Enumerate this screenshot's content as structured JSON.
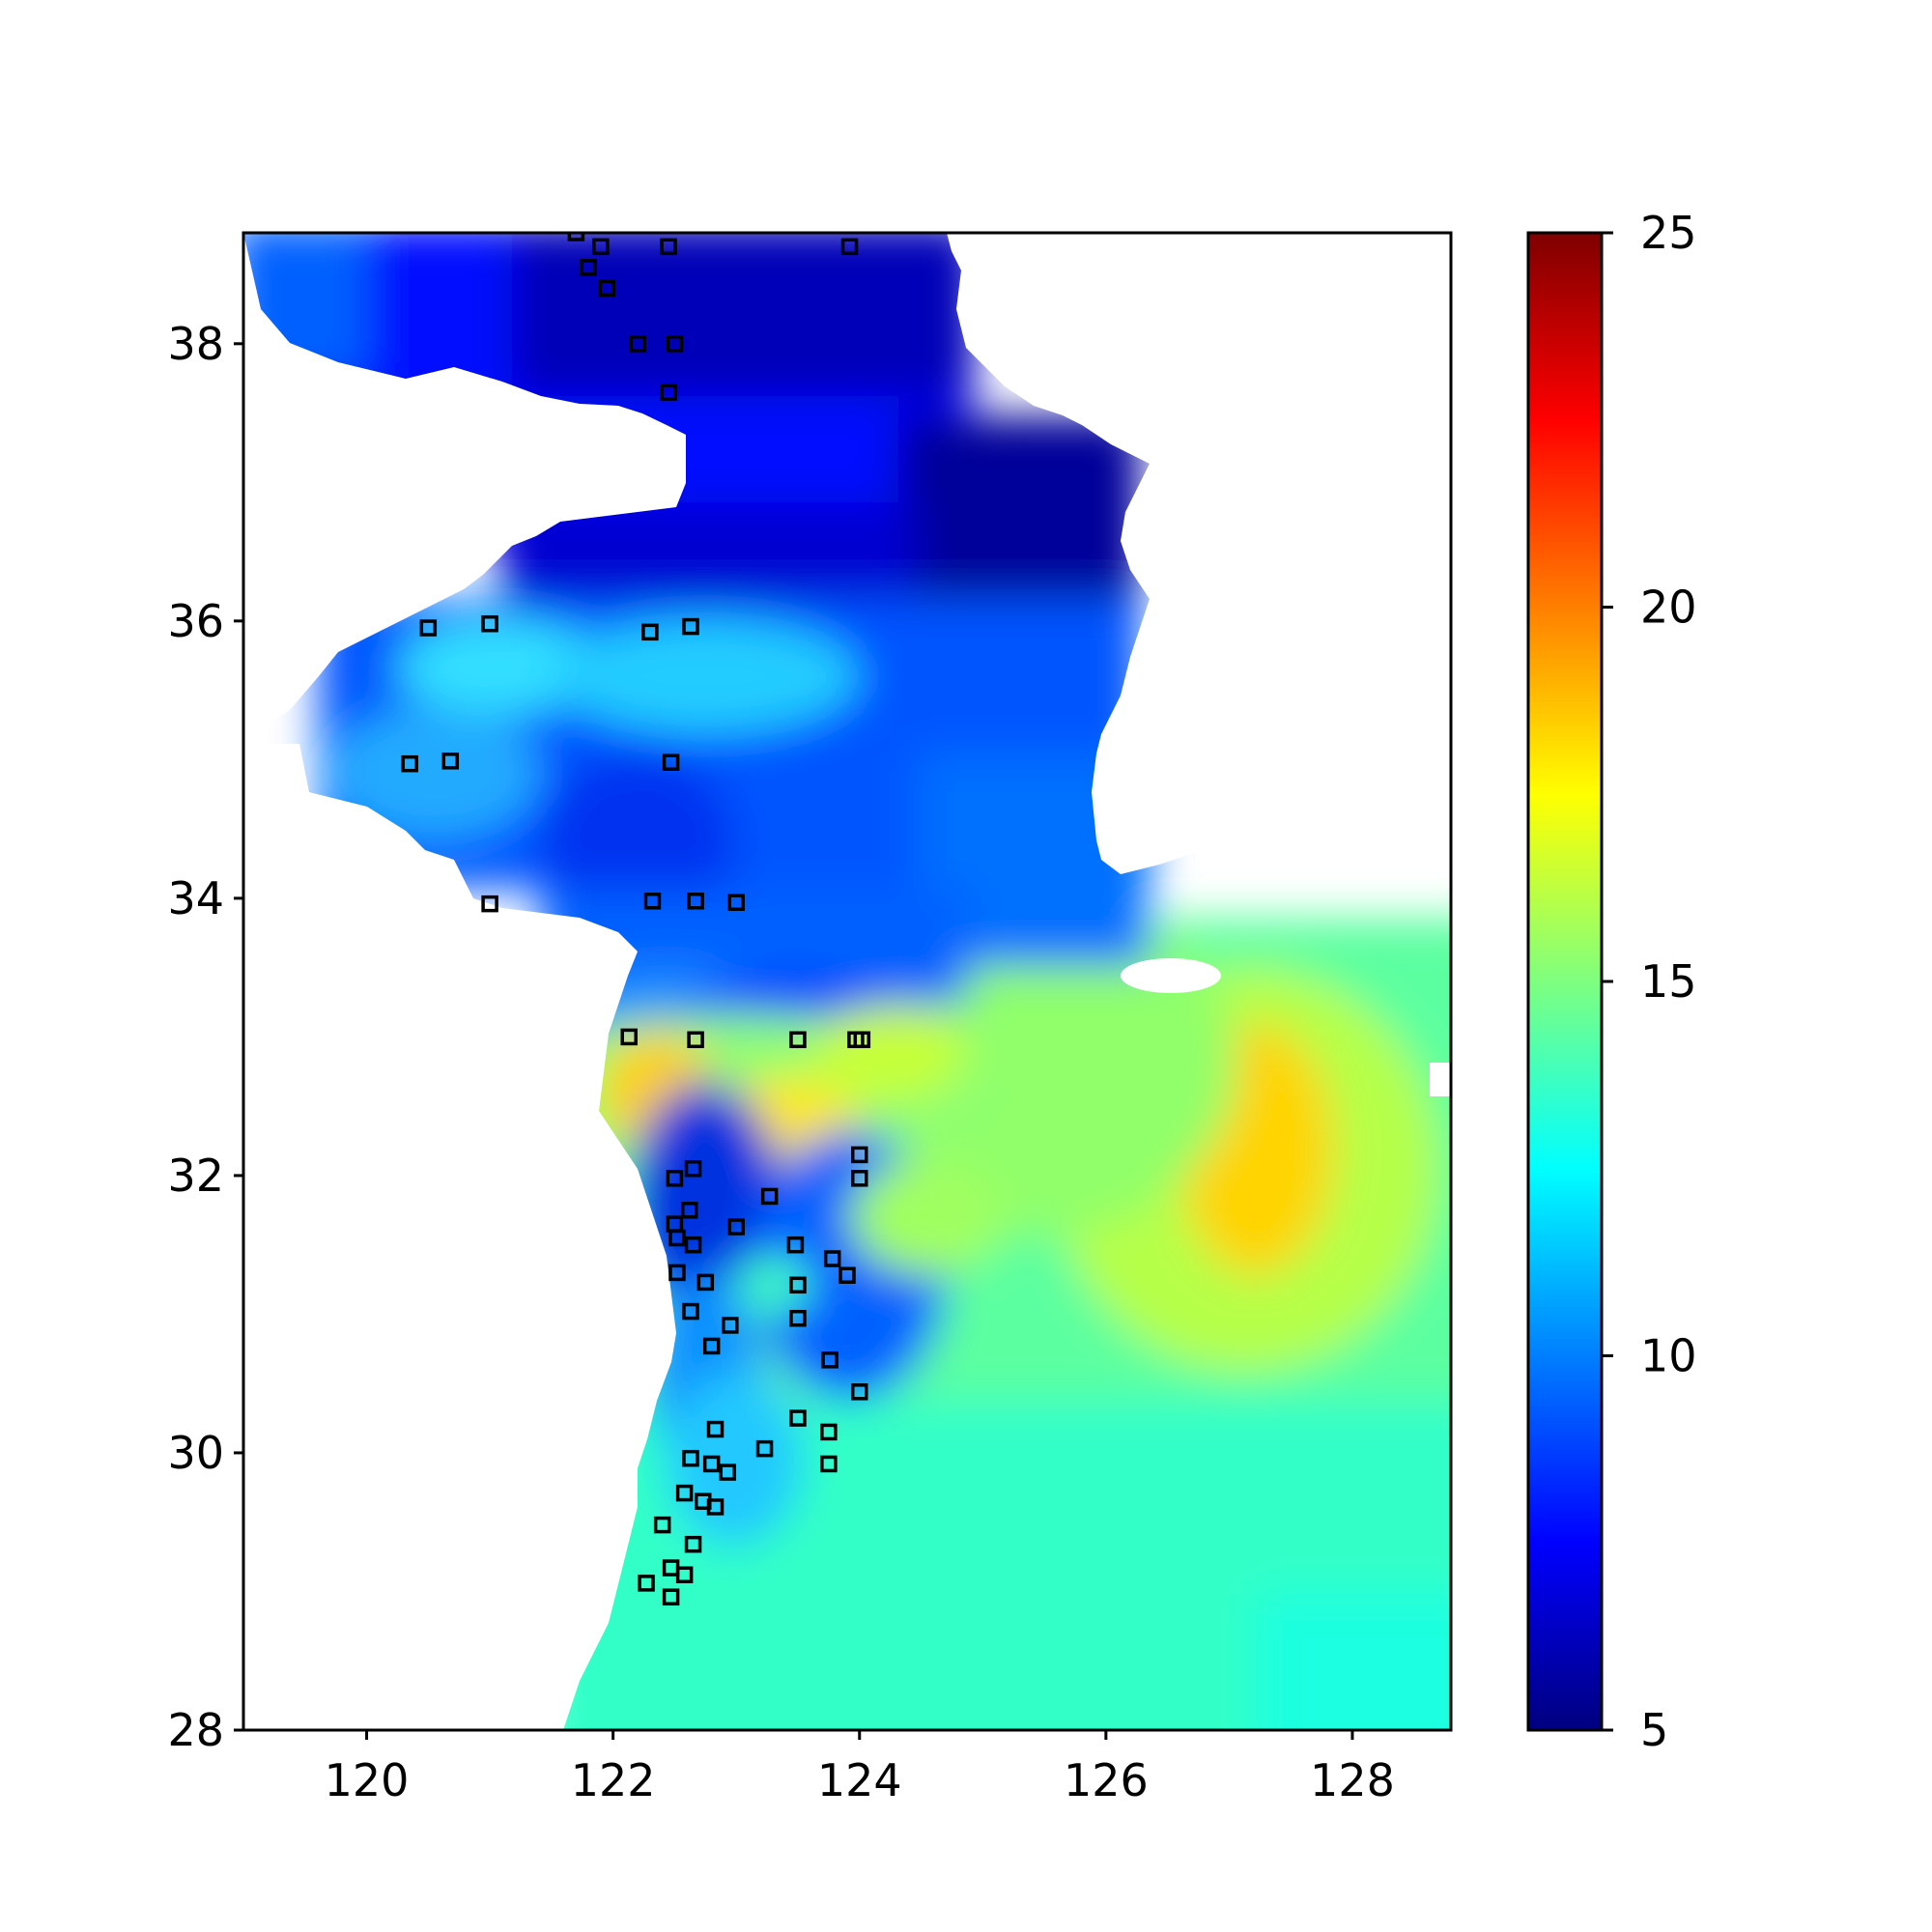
{
  "chart_data": {
    "type": "heatmap",
    "title": "",
    "xlabel": "",
    "ylabel": "",
    "xlim": [
      119.0,
      128.8
    ],
    "ylim": [
      28.0,
      38.8
    ],
    "xticks": [
      "120",
      "122",
      "124",
      "126",
      "128"
    ],
    "yticks": [
      "28",
      "30",
      "32",
      "34",
      "36",
      "38"
    ],
    "colorbar": {
      "colormap": "jet",
      "range": [
        5,
        25
      ],
      "ticks": [
        "5",
        "10",
        "15",
        "20",
        "25"
      ]
    },
    "colormap_stops": [
      "#00007f",
      "#0000ff",
      "#007fff",
      "#00ffff",
      "#7fff7f",
      "#ffff00",
      "#ff7f00",
      "#ff0000",
      "#7f0000"
    ],
    "land_color": "#ffffff",
    "field_description": "Interpolated surface field over the East China Sea / Yellow Sea; low values (~6-8) in the northern Yellow Sea, higher values (~17-19) near 127.2E 32N.",
    "station_markers": [
      [
        121.7,
        38.8
      ],
      [
        121.8,
        38.55
      ],
      [
        121.9,
        38.7
      ],
      [
        122.45,
        38.7
      ],
      [
        123.92,
        38.7
      ],
      [
        121.95,
        38.4
      ],
      [
        122.2,
        38.0
      ],
      [
        122.5,
        38.0
      ],
      [
        122.45,
        37.65
      ],
      [
        120.5,
        35.95
      ],
      [
        121.0,
        35.98
      ],
      [
        122.3,
        35.92
      ],
      [
        122.63,
        35.96
      ],
      [
        120.35,
        34.97
      ],
      [
        120.68,
        34.99
      ],
      [
        122.47,
        34.98
      ],
      [
        121.0,
        33.96
      ],
      [
        122.32,
        33.98
      ],
      [
        122.67,
        33.98
      ],
      [
        123.0,
        33.97
      ],
      [
        122.13,
        33.0
      ],
      [
        122.67,
        32.98
      ],
      [
        123.5,
        32.98
      ],
      [
        123.97,
        32.98
      ],
      [
        124.02,
        32.98
      ],
      [
        124.0,
        32.15
      ],
      [
        124.0,
        31.98
      ],
      [
        122.5,
        31.98
      ],
      [
        122.65,
        32.05
      ],
      [
        123.27,
        31.85
      ],
      [
        122.62,
        31.75
      ],
      [
        122.5,
        31.65
      ],
      [
        122.52,
        31.55
      ],
      [
        122.65,
        31.5
      ],
      [
        123.0,
        31.63
      ],
      [
        123.48,
        31.5
      ],
      [
        123.78,
        31.4
      ],
      [
        123.9,
        31.28
      ],
      [
        122.52,
        31.3
      ],
      [
        122.75,
        31.23
      ],
      [
        123.5,
        31.21
      ],
      [
        122.63,
        31.02
      ],
      [
        122.95,
        30.92
      ],
      [
        123.5,
        30.97
      ],
      [
        122.8,
        30.77
      ],
      [
        123.76,
        30.67
      ],
      [
        124.0,
        30.44
      ],
      [
        122.83,
        30.17
      ],
      [
        123.5,
        30.25
      ],
      [
        123.75,
        30.15
      ],
      [
        123.23,
        30.03
      ],
      [
        122.63,
        29.96
      ],
      [
        122.8,
        29.92
      ],
      [
        122.93,
        29.86
      ],
      [
        123.75,
        29.92
      ],
      [
        122.58,
        29.71
      ],
      [
        122.73,
        29.65
      ],
      [
        122.83,
        29.61
      ],
      [
        122.4,
        29.48
      ],
      [
        122.65,
        29.34
      ],
      [
        122.47,
        29.17
      ],
      [
        122.58,
        29.12
      ],
      [
        122.27,
        29.06
      ],
      [
        122.47,
        28.96
      ]
    ]
  }
}
